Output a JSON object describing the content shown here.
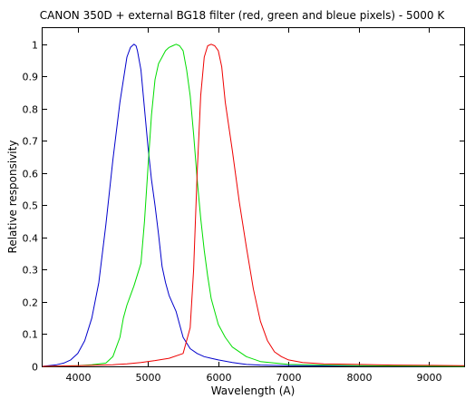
{
  "chart_data": {
    "type": "line",
    "title": "CANON 350D + external BG18 filter (red, green and bleue pixels) - 5000 K",
    "xlabel": "Wavelength (A)",
    "ylabel": "Relative responsivity",
    "xlim": [
      3500,
      9500
    ],
    "ylim": [
      0,
      1.05
    ],
    "xticks": [
      4000,
      5000,
      6000,
      7000,
      8000,
      9000
    ],
    "yticks": [
      0,
      0.1,
      0.2,
      0.3,
      0.4,
      0.5,
      0.6,
      0.7,
      0.8,
      0.9,
      1
    ],
    "grid": false,
    "legend": "none",
    "series": [
      {
        "color": "#0000cc",
        "x": [
          3500,
          3700,
          3800,
          3900,
          4000,
          4100,
          4200,
          4300,
          4400,
          4500,
          4600,
          4700,
          4750,
          4800,
          4830,
          4850,
          4900,
          4950,
          5000,
          5050,
          5100,
          5150,
          5200,
          5250,
          5300,
          5400,
          5450,
          5500,
          5600,
          5700,
          5800,
          5900,
          6000,
          6200,
          6400,
          6600,
          7000,
          8000,
          9500
        ],
        "y": [
          0.0,
          0.005,
          0.01,
          0.02,
          0.04,
          0.08,
          0.15,
          0.26,
          0.44,
          0.64,
          0.82,
          0.96,
          0.99,
          1.0,
          0.995,
          0.98,
          0.92,
          0.8,
          0.68,
          0.58,
          0.5,
          0.41,
          0.31,
          0.26,
          0.22,
          0.17,
          0.13,
          0.09,
          0.055,
          0.04,
          0.03,
          0.025,
          0.02,
          0.012,
          0.006,
          0.004,
          0.002,
          0.001,
          0.0
        ]
      },
      {
        "color": "#00dd00",
        "x": [
          3500,
          4000,
          4200,
          4400,
          4500,
          4600,
          4650,
          4700,
          4750,
          4800,
          4900,
          4950,
          5000,
          5050,
          5100,
          5150,
          5200,
          5250,
          5300,
          5350,
          5400,
          5450,
          5500,
          5550,
          5600,
          5650,
          5700,
          5750,
          5800,
          5850,
          5900,
          6000,
          6100,
          6200,
          6400,
          6600,
          7000,
          8000,
          9500
        ],
        "y": [
          0.0,
          0.002,
          0.005,
          0.01,
          0.03,
          0.09,
          0.15,
          0.19,
          0.22,
          0.25,
          0.32,
          0.45,
          0.62,
          0.78,
          0.89,
          0.94,
          0.96,
          0.98,
          0.99,
          0.995,
          1.0,
          0.995,
          0.98,
          0.92,
          0.84,
          0.72,
          0.58,
          0.46,
          0.36,
          0.28,
          0.21,
          0.13,
          0.09,
          0.06,
          0.03,
          0.015,
          0.006,
          0.002,
          0.0
        ]
      },
      {
        "color": "#ee0000",
        "x": [
          3500,
          4000,
          4500,
          4700,
          4900,
          5100,
          5300,
          5500,
          5600,
          5650,
          5700,
          5750,
          5800,
          5850,
          5900,
          5950,
          6000,
          6050,
          6100,
          6200,
          6300,
          6400,
          6500,
          6600,
          6700,
          6800,
          6900,
          7000,
          7200,
          7500,
          8000,
          8500,
          9000,
          9500
        ],
        "y": [
          0.0,
          0.002,
          0.005,
          0.008,
          0.012,
          0.018,
          0.025,
          0.04,
          0.12,
          0.3,
          0.6,
          0.84,
          0.96,
          0.995,
          1.0,
          0.995,
          0.98,
          0.93,
          0.82,
          0.67,
          0.51,
          0.37,
          0.24,
          0.14,
          0.08,
          0.045,
          0.03,
          0.02,
          0.012,
          0.008,
          0.006,
          0.004,
          0.003,
          0.002
        ]
      }
    ]
  }
}
